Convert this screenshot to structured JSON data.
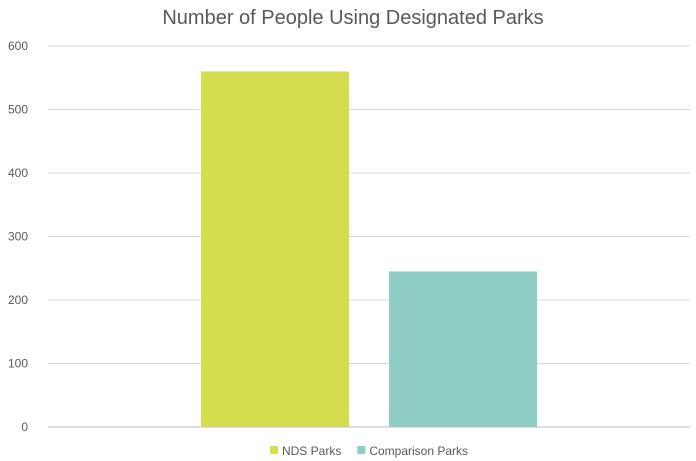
{
  "chart_data": {
    "type": "bar",
    "title": "Number of People Using Designated Parks",
    "xlabel": "",
    "ylabel": "",
    "ylim": [
      0,
      600
    ],
    "yticks": [
      0,
      100,
      200,
      300,
      400,
      500,
      600
    ],
    "grid": true,
    "legend_position": "bottom",
    "series": [
      {
        "name": "NDS Parks",
        "value": 560,
        "color": "#d4dd4e"
      },
      {
        "name": "Comparison Parks",
        "value": 245,
        "color": "#8ecec5"
      }
    ]
  }
}
